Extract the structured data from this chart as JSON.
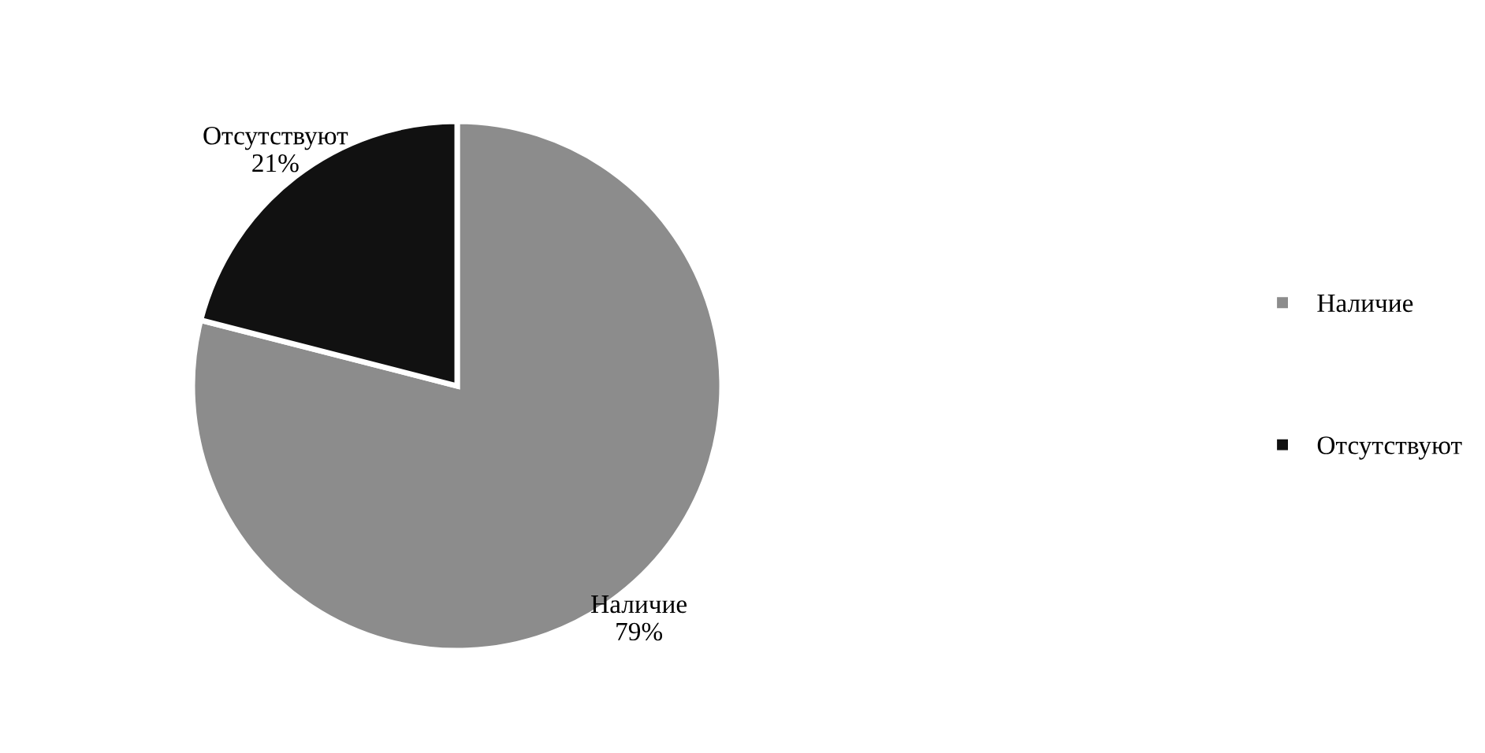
{
  "chart_data": {
    "type": "pie",
    "categories": [
      "Наличие",
      "Отсутствуют"
    ],
    "values": [
      79,
      21
    ],
    "colors": [
      "#8c8c8c",
      "#111111"
    ],
    "value_labels": [
      "79%",
      "21%"
    ],
    "legend": "right"
  }
}
